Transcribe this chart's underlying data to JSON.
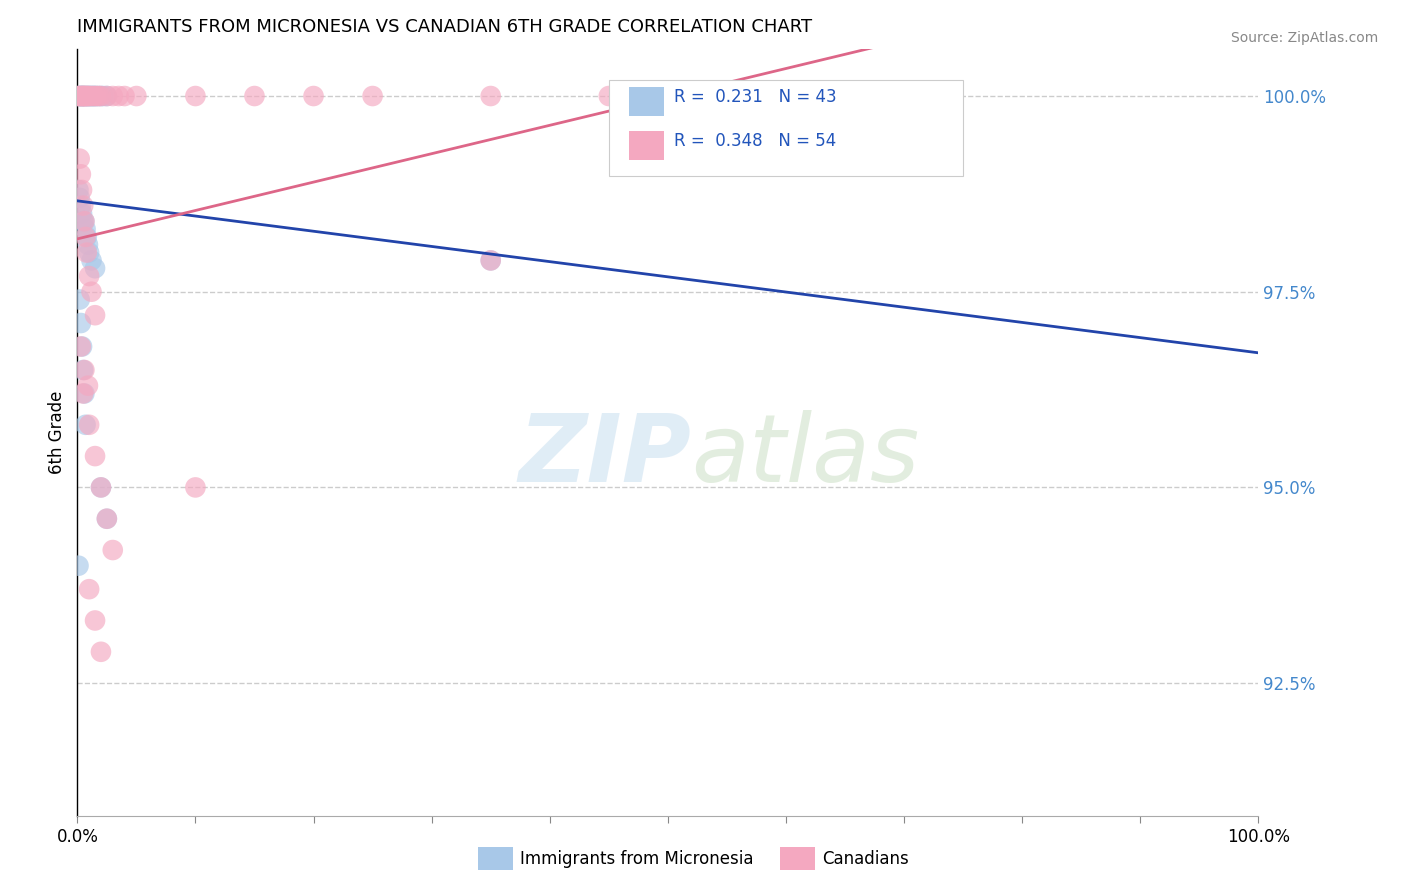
{
  "title": "IMMIGRANTS FROM MICRONESIA VS CANADIAN 6TH GRADE CORRELATION CHART",
  "source": "Source: ZipAtlas.com",
  "ylabel": "6th Grade",
  "blue_R": "0.231",
  "blue_N": "43",
  "pink_R": "0.348",
  "pink_N": "54",
  "blue_color": "#a8c8e8",
  "pink_color": "#f4a8c0",
  "blue_line_color": "#2244aa",
  "pink_line_color": "#dd6688",
  "xlim": [
    0.0,
    1.0
  ],
  "ylim": [
    0.908,
    1.006
  ],
  "yticks": [
    0.925,
    0.95,
    0.975,
    1.0
  ],
  "ytick_labels": [
    "92.5%",
    "95.0%",
    "97.5%",
    "100.0%"
  ],
  "xtick_positions": [
    0.0,
    0.1,
    0.2,
    0.3,
    0.4,
    0.5,
    0.6,
    0.7,
    0.8,
    0.9,
    1.0
  ],
  "blue_x": [
    0.001,
    0.003,
    0.004,
    0.005,
    0.006,
    0.007,
    0.008,
    0.009,
    0.01,
    0.012,
    0.013,
    0.014,
    0.015,
    0.016,
    0.017,
    0.018,
    0.02,
    0.022,
    0.025,
    0.028,
    0.032,
    0.036,
    0.04,
    0.045,
    0.05,
    0.055,
    0.06,
    0.065,
    0.07,
    0.002,
    0.003,
    0.005,
    0.007,
    0.009,
    0.011,
    0.004,
    0.006,
    0.008,
    0.35,
    0.003,
    0.002,
    0.004,
    0.006
  ],
  "blue_y": [
    0.968,
    0.974,
    0.978,
    0.982,
    0.985,
    0.987,
    0.989,
    0.991,
    0.993,
    0.995,
    0.996,
    0.997,
    0.998,
    0.999,
    1.0,
    1.0,
    1.0,
    1.0,
    1.0,
    1.0,
    1.0,
    1.0,
    1.0,
    1.0,
    1.0,
    1.0,
    1.0,
    1.0,
    1.0,
    0.97,
    0.975,
    0.984,
    0.988,
    0.992,
    0.995,
    0.98,
    0.986,
    0.99,
    0.979,
    0.972,
    0.963,
    0.966,
    0.969
  ],
  "pink_x": [
    0.001,
    0.002,
    0.003,
    0.004,
    0.005,
    0.006,
    0.007,
    0.008,
    0.009,
    0.01,
    0.011,
    0.012,
    0.013,
    0.014,
    0.015,
    0.016,
    0.018,
    0.02,
    0.022,
    0.025,
    0.028,
    0.032,
    0.036,
    0.04,
    0.05,
    0.06,
    0.07,
    0.08,
    0.35,
    0.45,
    0.003,
    0.005,
    0.007,
    0.009,
    0.011,
    0.013,
    0.002,
    0.004,
    0.006,
    0.008,
    0.1,
    0.14,
    0.18,
    0.25,
    0.003,
    0.006,
    0.009,
    0.012,
    0.015,
    0.02,
    0.025,
    0.03,
    0.035,
    0.04
  ],
  "pink_y": [
    0.96,
    0.964,
    0.968,
    0.972,
    0.975,
    0.978,
    0.98,
    0.982,
    0.984,
    0.986,
    0.988,
    0.99,
    0.991,
    0.992,
    0.993,
    0.994,
    0.996,
    0.997,
    0.998,
    0.999,
    1.0,
    1.0,
    1.0,
    1.0,
    1.0,
    1.0,
    1.0,
    1.0,
    1.0,
    1.0,
    0.965,
    0.974,
    0.981,
    0.986,
    0.99,
    0.993,
    0.962,
    0.971,
    0.978,
    0.983,
    1.0,
    1.0,
    1.0,
    1.0,
    0.966,
    0.97,
    0.973,
    0.976,
    0.979,
    0.982,
    0.985,
    0.987,
    0.939,
    0.944
  ]
}
